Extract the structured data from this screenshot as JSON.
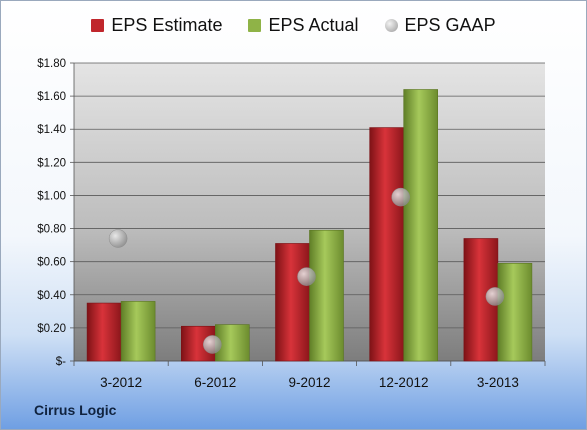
{
  "chart_data": {
    "type": "bar",
    "categories": [
      "3-2012",
      "6-2012",
      "9-2012",
      "12-2012",
      "3-2013"
    ],
    "series": [
      {
        "name": "EPS Estimate",
        "kind": "bar",
        "color": "#c0262c",
        "values": [
          0.35,
          0.21,
          0.71,
          1.41,
          0.74
        ]
      },
      {
        "name": "EPS Actual",
        "kind": "bar",
        "color": "#8fb347",
        "values": [
          0.36,
          0.22,
          0.79,
          1.64,
          0.59
        ]
      },
      {
        "name": "EPS GAAP",
        "kind": "marker",
        "color": "#a8a8a8",
        "values": [
          0.74,
          0.1,
          0.51,
          0.99,
          0.39
        ]
      }
    ],
    "ylim": [
      0,
      1.8
    ],
    "yticks": [
      0,
      0.2,
      0.4,
      0.6,
      0.8,
      1.0,
      1.2,
      1.4,
      1.6,
      1.8
    ],
    "ytick_labels": [
      "$-",
      "$0.20",
      "$0.40",
      "$0.60",
      "$0.80",
      "$1.00",
      "$1.20",
      "$1.40",
      "$1.60",
      "$1.80"
    ],
    "grid": true,
    "legend_position": "top"
  },
  "footer": {
    "company": "Cirrus Logic"
  }
}
